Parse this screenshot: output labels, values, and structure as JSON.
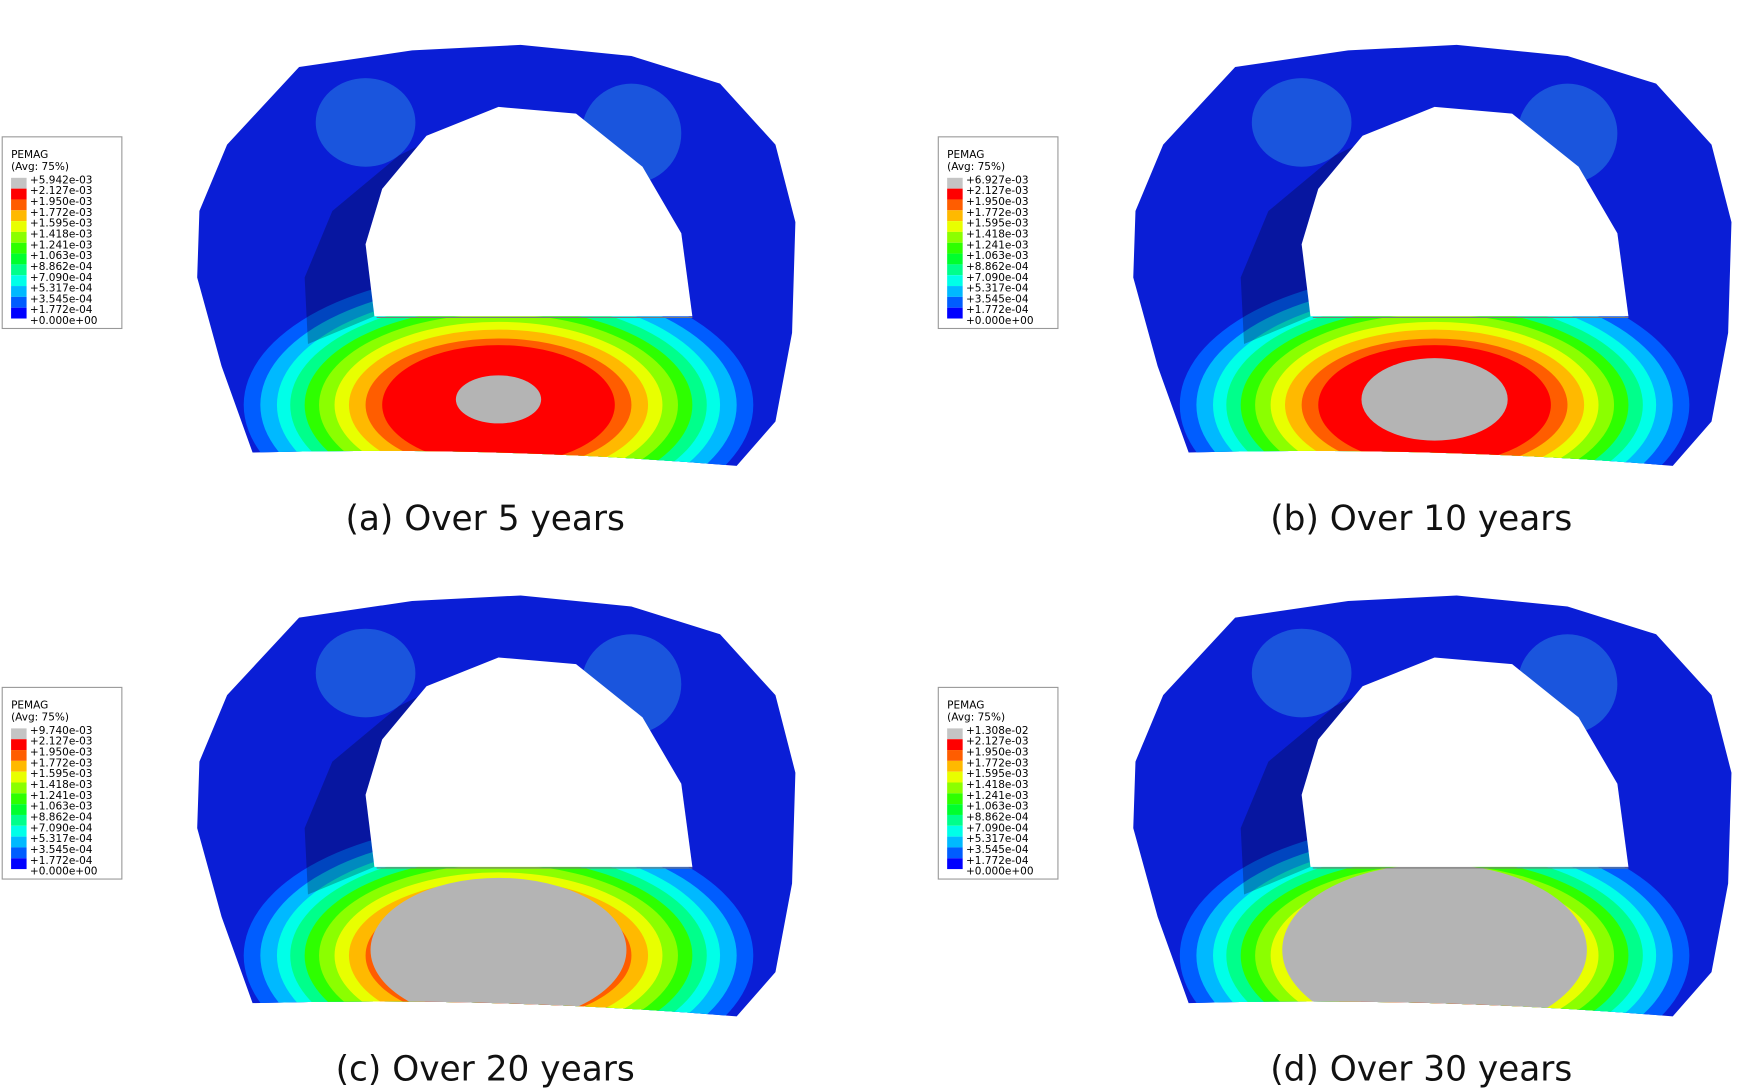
{
  "panels": [
    {
      "legend": {
        "title": "PEMAG",
        "subtitle": "(Avg: 75%)",
        "labels": [
          "+5.942e-03",
          "+2.127e-03",
          "+1.950e-03",
          "+1.772e-03",
          "+1.595e-03",
          "+1.418e-03",
          "+1.241e-03",
          "+1.063e-03",
          "+8.862e-04",
          "+7.090e-04",
          "+5.317e-04",
          "+3.545e-04",
          "+1.772e-04",
          "+0.000e+00"
        ]
      },
      "caption": "(a) Over 5 years"
    },
    {
      "legend": {
        "title": "PEMAG",
        "subtitle": "(Avg: 75%)",
        "labels": [
          "+6.927e-03",
          "+2.127e-03",
          "+1.950e-03",
          "+1.772e-03",
          "+1.595e-03",
          "+1.418e-03",
          "+1.241e-03",
          "+1.063e-03",
          "+8.862e-04",
          "+7.090e-04",
          "+5.317e-04",
          "+3.545e-04",
          "+1.772e-04",
          "+0.000e+00"
        ]
      },
      "caption": "(b) Over 10 years"
    },
    {
      "legend": {
        "title": "PEMAG",
        "subtitle": "(Avg: 75%)",
        "labels": [
          "+9.740e-03",
          "+2.127e-03",
          "+1.950e-03",
          "+1.772e-03",
          "+1.595e-03",
          "+1.418e-03",
          "+1.241e-03",
          "+1.063e-03",
          "+8.862e-04",
          "+7.090e-04",
          "+5.317e-04",
          "+3.545e-04",
          "+1.772e-04",
          "+0.000e+00"
        ]
      },
      "caption": "(c) Over 20 years"
    },
    {
      "legend": {
        "title": "PEMAG",
        "subtitle": "(Avg: 75%)",
        "labels": [
          "+1.308e-02",
          "+2.127e-03",
          "+1.950e-03",
          "+1.772e-03",
          "+1.595e-03",
          "+1.418e-03",
          "+1.241e-03",
          "+1.063e-03",
          "+8.862e-04",
          "+7.090e-04",
          "+5.317e-04",
          "+3.545e-04",
          "+1.772e-04",
          "+0.000e+00"
        ]
      },
      "caption": "(d) Over 30 years"
    }
  ]
}
